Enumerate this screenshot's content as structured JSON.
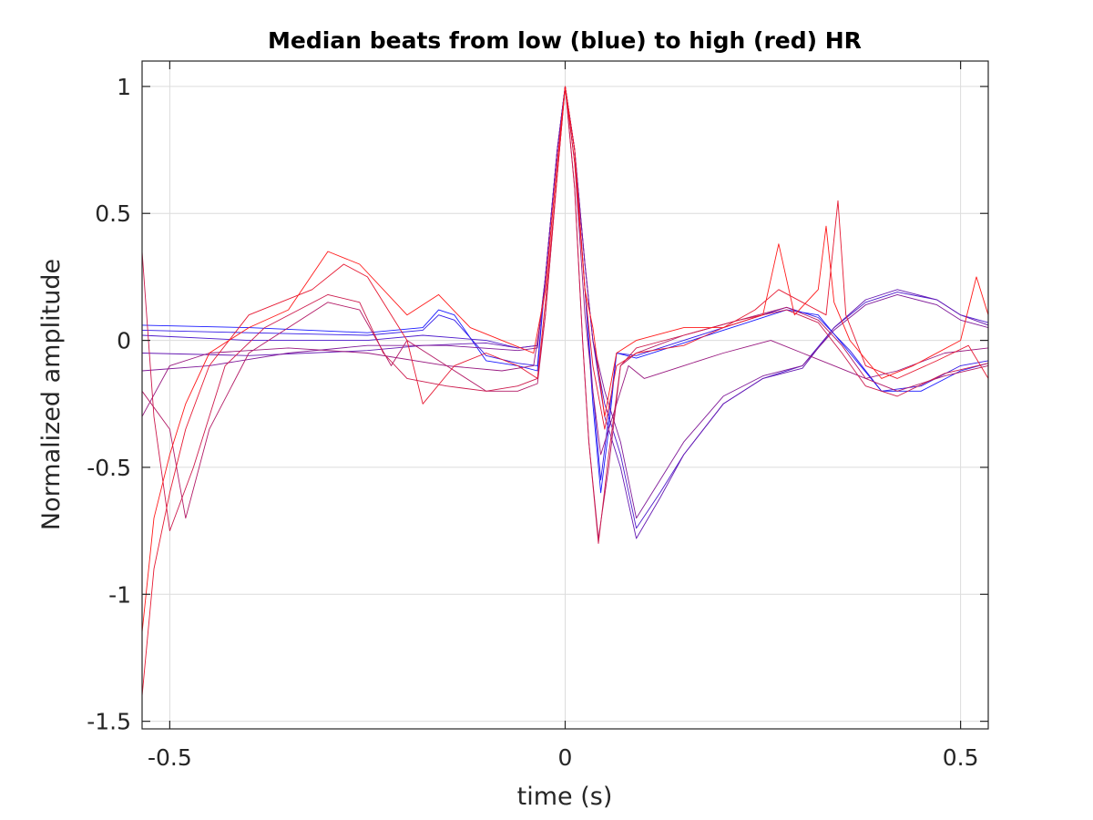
{
  "chart_data": {
    "type": "line",
    "title": "Median beats from low (blue) to high (red) HR",
    "xlabel": "time (s)",
    "ylabel": "Normalized amplitude",
    "xlim": [
      -0.535,
      0.535
    ],
    "ylim": [
      -1.53,
      1.1
    ],
    "xticks": [
      -0.5,
      0,
      0.5
    ],
    "xtick_labels": [
      "-0.5",
      "0",
      "0.5"
    ],
    "yticks": [
      -1.5,
      -1,
      -0.5,
      0,
      0.5,
      1
    ],
    "ytick_labels": [
      "-1.5",
      "-1",
      "-0.5",
      "0",
      "0.5",
      "1"
    ],
    "grid": true,
    "legend": "none",
    "color_scale": {
      "low": "#1a1aff",
      "high": "#ff1a1a"
    },
    "series": [
      {
        "values": [
          [
            -0.535,
            0.06
          ],
          [
            -0.4,
            0.05
          ],
          [
            -0.25,
            0.03
          ],
          [
            -0.18,
            0.05
          ],
          [
            -0.16,
            0.12
          ],
          [
            -0.14,
            0.1
          ],
          [
            -0.1,
            -0.08
          ],
          [
            -0.06,
            -0.1
          ],
          [
            -0.035,
            -0.12
          ],
          [
            -0.025,
            0.25
          ],
          [
            -0.01,
            0.75
          ],
          [
            0,
            1.0
          ],
          [
            0.012,
            0.75
          ],
          [
            0.025,
            0.2
          ],
          [
            0.035,
            -0.25
          ],
          [
            0.045,
            -0.6
          ],
          [
            0.055,
            -0.35
          ],
          [
            0.065,
            -0.05
          ],
          [
            0.09,
            -0.07
          ],
          [
            0.15,
            -0.01
          ],
          [
            0.22,
            0.06
          ],
          [
            0.28,
            0.12
          ],
          [
            0.32,
            0.1
          ],
          [
            0.36,
            -0.05
          ],
          [
            0.4,
            -0.2
          ],
          [
            0.45,
            -0.2
          ],
          [
            0.5,
            -0.12
          ],
          [
            0.535,
            -0.09
          ]
        ]
      },
      {
        "values": [
          [
            -0.535,
            0.04
          ],
          [
            -0.4,
            0.03
          ],
          [
            -0.25,
            0.02
          ],
          [
            -0.18,
            0.04
          ],
          [
            -0.16,
            0.1
          ],
          [
            -0.14,
            0.08
          ],
          [
            -0.1,
            -0.06
          ],
          [
            -0.06,
            -0.09
          ],
          [
            -0.035,
            -0.1
          ],
          [
            -0.025,
            0.25
          ],
          [
            -0.01,
            0.75
          ],
          [
            0,
            1.0
          ],
          [
            0.012,
            0.75
          ],
          [
            0.025,
            0.2
          ],
          [
            0.035,
            -0.2
          ],
          [
            0.045,
            -0.55
          ],
          [
            0.055,
            -0.3
          ],
          [
            0.065,
            -0.05
          ],
          [
            0.09,
            -0.06
          ],
          [
            0.15,
            0.0
          ],
          [
            0.22,
            0.07
          ],
          [
            0.28,
            0.13
          ],
          [
            0.32,
            0.09
          ],
          [
            0.36,
            -0.04
          ],
          [
            0.4,
            -0.2
          ],
          [
            0.45,
            -0.18
          ],
          [
            0.5,
            -0.1
          ],
          [
            0.535,
            -0.08
          ]
        ]
      },
      {
        "values": [
          [
            -0.535,
            0.02
          ],
          [
            -0.4,
            0.0
          ],
          [
            -0.25,
            0.0
          ],
          [
            -0.18,
            0.02
          ],
          [
            -0.1,
            0.0
          ],
          [
            -0.06,
            -0.03
          ],
          [
            -0.035,
            -0.02
          ],
          [
            -0.025,
            0.25
          ],
          [
            -0.01,
            0.75
          ],
          [
            0,
            1.0
          ],
          [
            0.012,
            0.75
          ],
          [
            0.025,
            0.3
          ],
          [
            0.035,
            0.0
          ],
          [
            0.05,
            -0.25
          ],
          [
            0.07,
            -0.45
          ],
          [
            0.09,
            -0.74
          ],
          [
            0.12,
            -0.6
          ],
          [
            0.15,
            -0.45
          ],
          [
            0.2,
            -0.25
          ],
          [
            0.25,
            -0.15
          ],
          [
            0.3,
            -0.1
          ],
          [
            0.34,
            0.05
          ],
          [
            0.38,
            0.15
          ],
          [
            0.42,
            0.19
          ],
          [
            0.47,
            0.16
          ],
          [
            0.5,
            0.1
          ],
          [
            0.535,
            0.07
          ]
        ]
      },
      {
        "values": [
          [
            -0.535,
            -0.05
          ],
          [
            -0.4,
            -0.06
          ],
          [
            -0.25,
            -0.04
          ],
          [
            -0.18,
            -0.02
          ],
          [
            -0.1,
            -0.01
          ],
          [
            -0.06,
            -0.03
          ],
          [
            -0.035,
            -0.02
          ],
          [
            -0.025,
            0.25
          ],
          [
            -0.01,
            0.75
          ],
          [
            0,
            1.0
          ],
          [
            0.012,
            0.75
          ],
          [
            0.025,
            0.3
          ],
          [
            0.035,
            0.0
          ],
          [
            0.05,
            -0.3
          ],
          [
            0.07,
            -0.5
          ],
          [
            0.09,
            -0.78
          ],
          [
            0.12,
            -0.62
          ],
          [
            0.15,
            -0.45
          ],
          [
            0.2,
            -0.25
          ],
          [
            0.25,
            -0.15
          ],
          [
            0.3,
            -0.11
          ],
          [
            0.34,
            0.05
          ],
          [
            0.38,
            0.16
          ],
          [
            0.42,
            0.2
          ],
          [
            0.47,
            0.16
          ],
          [
            0.5,
            0.1
          ],
          [
            0.535,
            0.06
          ]
        ]
      },
      {
        "values": [
          [
            -0.535,
            -0.12
          ],
          [
            -0.45,
            -0.1
          ],
          [
            -0.35,
            -0.05
          ],
          [
            -0.25,
            -0.02
          ],
          [
            -0.15,
            -0.02
          ],
          [
            -0.06,
            -0.04
          ],
          [
            -0.035,
            -0.03
          ],
          [
            -0.025,
            0.25
          ],
          [
            -0.01,
            0.75
          ],
          [
            0,
            1.0
          ],
          [
            0.012,
            0.75
          ],
          [
            0.025,
            0.3
          ],
          [
            0.035,
            0.0
          ],
          [
            0.05,
            -0.2
          ],
          [
            0.07,
            -0.4
          ],
          [
            0.09,
            -0.7
          ],
          [
            0.12,
            -0.55
          ],
          [
            0.15,
            -0.4
          ],
          [
            0.2,
            -0.22
          ],
          [
            0.25,
            -0.14
          ],
          [
            0.3,
            -0.1
          ],
          [
            0.34,
            0.04
          ],
          [
            0.38,
            0.14
          ],
          [
            0.42,
            0.18
          ],
          [
            0.47,
            0.14
          ],
          [
            0.5,
            0.08
          ],
          [
            0.535,
            0.05
          ]
        ]
      },
      {
        "values": [
          [
            -0.535,
            -0.3
          ],
          [
            -0.5,
            -0.1
          ],
          [
            -0.45,
            -0.05
          ],
          [
            -0.35,
            -0.03
          ],
          [
            -0.25,
            -0.05
          ],
          [
            -0.15,
            -0.1
          ],
          [
            -0.08,
            -0.12
          ],
          [
            -0.04,
            -0.1
          ],
          [
            -0.025,
            0.2
          ],
          [
            -0.01,
            0.7
          ],
          [
            0,
            1.0
          ],
          [
            0.012,
            0.7
          ],
          [
            0.025,
            0.1
          ],
          [
            0.035,
            -0.2
          ],
          [
            0.045,
            -0.45
          ],
          [
            0.06,
            -0.3
          ],
          [
            0.08,
            -0.1
          ],
          [
            0.1,
            -0.15
          ],
          [
            0.15,
            -0.1
          ],
          [
            0.2,
            -0.05
          ],
          [
            0.26,
            0.0
          ],
          [
            0.3,
            -0.05
          ],
          [
            0.34,
            -0.1
          ],
          [
            0.38,
            -0.15
          ],
          [
            0.42,
            -0.12
          ],
          [
            0.48,
            -0.05
          ],
          [
            0.535,
            -0.03
          ]
        ]
      },
      {
        "values": [
          [
            -0.535,
            -0.2
          ],
          [
            -0.5,
            -0.35
          ],
          [
            -0.48,
            -0.7
          ],
          [
            -0.45,
            -0.35
          ],
          [
            -0.4,
            -0.05
          ],
          [
            -0.3,
            0.15
          ],
          [
            -0.26,
            0.12
          ],
          [
            -0.22,
            -0.1
          ],
          [
            -0.2,
            0.0
          ],
          [
            -0.15,
            -0.1
          ],
          [
            -0.1,
            -0.2
          ],
          [
            -0.06,
            -0.2
          ],
          [
            -0.035,
            -0.17
          ],
          [
            -0.025,
            0.1
          ],
          [
            -0.01,
            0.65
          ],
          [
            0,
            1.0
          ],
          [
            0.012,
            0.6
          ],
          [
            0.022,
            0.0
          ],
          [
            0.03,
            -0.4
          ],
          [
            0.042,
            -0.78
          ],
          [
            0.055,
            -0.5
          ],
          [
            0.07,
            -0.1
          ],
          [
            0.09,
            -0.05
          ],
          [
            0.15,
            0.02
          ],
          [
            0.22,
            0.08
          ],
          [
            0.28,
            0.13
          ],
          [
            0.32,
            0.08
          ],
          [
            0.35,
            -0.02
          ],
          [
            0.38,
            -0.15
          ],
          [
            0.42,
            -0.2
          ],
          [
            0.48,
            -0.14
          ],
          [
            0.535,
            -0.1
          ]
        ]
      },
      {
        "values": [
          [
            -0.535,
            0.35
          ],
          [
            -0.52,
            -0.3
          ],
          [
            -0.5,
            -0.75
          ],
          [
            -0.47,
            -0.5
          ],
          [
            -0.43,
            -0.1
          ],
          [
            -0.38,
            0.05
          ],
          [
            -0.3,
            0.18
          ],
          [
            -0.26,
            0.15
          ],
          [
            -0.23,
            -0.05
          ],
          [
            -0.2,
            -0.15
          ],
          [
            -0.15,
            -0.18
          ],
          [
            -0.1,
            -0.2
          ],
          [
            -0.06,
            -0.18
          ],
          [
            -0.035,
            -0.15
          ],
          [
            -0.025,
            0.1
          ],
          [
            -0.01,
            0.65
          ],
          [
            0,
            1.0
          ],
          [
            0.012,
            0.6
          ],
          [
            0.022,
            0.0
          ],
          [
            0.03,
            -0.4
          ],
          [
            0.042,
            -0.8
          ],
          [
            0.055,
            -0.45
          ],
          [
            0.07,
            -0.1
          ],
          [
            0.09,
            -0.03
          ],
          [
            0.15,
            0.02
          ],
          [
            0.22,
            0.08
          ],
          [
            0.28,
            0.12
          ],
          [
            0.32,
            0.07
          ],
          [
            0.35,
            -0.05
          ],
          [
            0.38,
            -0.18
          ],
          [
            0.42,
            -0.22
          ],
          [
            0.48,
            -0.13
          ],
          [
            0.535,
            -0.09
          ]
        ]
      },
      {
        "values": [
          [
            -0.535,
            -1.4
          ],
          [
            -0.52,
            -0.9
          ],
          [
            -0.5,
            -0.6
          ],
          [
            -0.48,
            -0.35
          ],
          [
            -0.45,
            -0.1
          ],
          [
            -0.4,
            0.1
          ],
          [
            -0.32,
            0.2
          ],
          [
            -0.28,
            0.3
          ],
          [
            -0.25,
            0.25
          ],
          [
            -0.2,
            0.0
          ],
          [
            -0.18,
            -0.25
          ],
          [
            -0.14,
            -0.1
          ],
          [
            -0.1,
            -0.05
          ],
          [
            -0.06,
            -0.1
          ],
          [
            -0.035,
            -0.15
          ],
          [
            -0.025,
            0.15
          ],
          [
            -0.01,
            0.65
          ],
          [
            0,
            1.0
          ],
          [
            0.012,
            0.7
          ],
          [
            0.025,
            0.2
          ],
          [
            0.035,
            -0.1
          ],
          [
            0.05,
            -0.35
          ],
          [
            0.065,
            -0.1
          ],
          [
            0.09,
            -0.05
          ],
          [
            0.15,
            -0.02
          ],
          [
            0.2,
            0.05
          ],
          [
            0.24,
            0.12
          ],
          [
            0.27,
            0.2
          ],
          [
            0.3,
            0.15
          ],
          [
            0.33,
            0.1
          ],
          [
            0.345,
            0.55
          ],
          [
            0.355,
            0.1
          ],
          [
            0.38,
            -0.1
          ],
          [
            0.42,
            -0.15
          ],
          [
            0.47,
            -0.08
          ],
          [
            0.51,
            -0.02
          ],
          [
            0.535,
            -0.15
          ]
        ]
      },
      {
        "values": [
          [
            -0.535,
            -1.15
          ],
          [
            -0.52,
            -0.7
          ],
          [
            -0.5,
            -0.45
          ],
          [
            -0.48,
            -0.25
          ],
          [
            -0.45,
            -0.05
          ],
          [
            -0.4,
            0.05
          ],
          [
            -0.35,
            0.12
          ],
          [
            -0.3,
            0.35
          ],
          [
            -0.26,
            0.3
          ],
          [
            -0.2,
            0.1
          ],
          [
            -0.16,
            0.18
          ],
          [
            -0.12,
            0.05
          ],
          [
            -0.08,
            0.0
          ],
          [
            -0.04,
            -0.05
          ],
          [
            -0.025,
            0.2
          ],
          [
            -0.01,
            0.7
          ],
          [
            0,
            1.0
          ],
          [
            0.012,
            0.75
          ],
          [
            0.025,
            0.2
          ],
          [
            0.035,
            0.05
          ],
          [
            0.05,
            -0.3
          ],
          [
            0.065,
            -0.05
          ],
          [
            0.09,
            0.0
          ],
          [
            0.15,
            0.05
          ],
          [
            0.2,
            0.05
          ],
          [
            0.25,
            0.1
          ],
          [
            0.27,
            0.38
          ],
          [
            0.29,
            0.1
          ],
          [
            0.32,
            0.2
          ],
          [
            0.33,
            0.45
          ],
          [
            0.34,
            0.15
          ],
          [
            0.36,
            0.0
          ],
          [
            0.4,
            -0.15
          ],
          [
            0.44,
            -0.1
          ],
          [
            0.5,
            0.0
          ],
          [
            0.52,
            0.25
          ],
          [
            0.535,
            0.1
          ]
        ]
      }
    ]
  }
}
